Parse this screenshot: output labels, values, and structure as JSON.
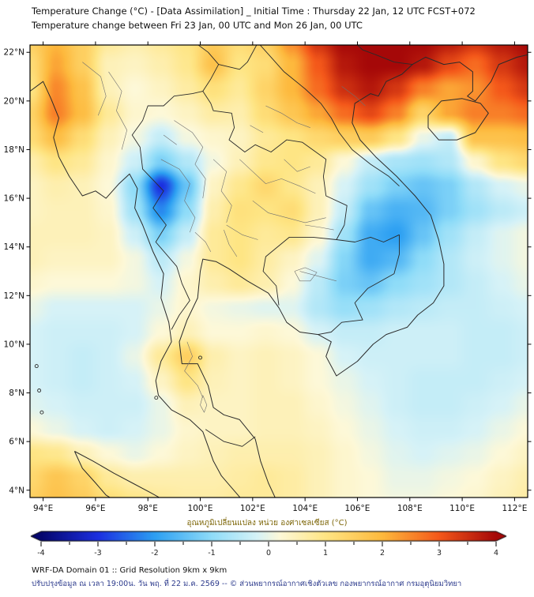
{
  "title": "Temperature Change (°C) - [Data Assimilation] _ Initial Time : Thursday 22 Jan, 12 UTC FCST+072",
  "subtitle": "Temperature change between Fri 23 Jan, 00 UTC and Mon 26 Jan, 00 UTC",
  "map": {
    "x_ticks": [
      "94°E",
      "96°E",
      "98°E",
      "100°E",
      "102°E",
      "104°E",
      "106°E",
      "108°E",
      "110°E",
      "112°E"
    ],
    "y_ticks": [
      "22°N",
      "20°N",
      "18°N",
      "16°N",
      "14°N",
      "12°N",
      "10°N",
      "8°N",
      "6°N",
      "4°N"
    ]
  },
  "colorbar": {
    "label": "อุณหภูมิเปลี่ยนแปลง หน่วย องศาเซลเซียส (°C)",
    "ticks": [
      "-4",
      "-3",
      "-2",
      "-1",
      "0",
      "1",
      "2",
      "3",
      "4"
    ]
  },
  "footer": {
    "line1": "WRF-DA Domain 01 :: Grid Resolution 9km x 9km",
    "line2": "ปรับปรุงข้อมูล ณ เวลา 19:00น. วัน พฤ. ที่ 22 ม.ค. 2569 -- © ส่วนพยากรณ์อากาศเชิงตัวเลข กองพยากรณ์อากาศ กรมอุตุนิยมวิทยา"
  },
  "chart_data": {
    "type": "heatmap",
    "title": "Temperature Change (°C) - [Data Assimilation] _ Initial Time : Thursday 22 Jan, 12 UTC FCST+072",
    "subtitle": "Temperature change between Fri 23 Jan, 00 UTC and Mon 26 Jan, 00 UTC",
    "x_unit": "°E",
    "y_unit": "°N",
    "value_unit": "°C",
    "value_range": [
      -4,
      4
    ],
    "colorbar_ticks": [
      -4,
      -3,
      -2,
      -1,
      0,
      1,
      2,
      3,
      4
    ],
    "colormap_stops": [
      {
        "v": -4,
        "color": "#05066d"
      },
      {
        "v": -3,
        "color": "#1b2fe0"
      },
      {
        "v": -2,
        "color": "#2c9ff2"
      },
      {
        "v": -1,
        "color": "#8fdcf8"
      },
      {
        "v": -0.2,
        "color": "#d6f2f7"
      },
      {
        "v": 0.2,
        "color": "#fdf8d8"
      },
      {
        "v": 1,
        "color": "#fee584"
      },
      {
        "v": 2,
        "color": "#fdb93d"
      },
      {
        "v": 3,
        "color": "#f4581a"
      },
      {
        "v": 4,
        "color": "#a50808"
      }
    ],
    "x": [
      93.5,
      94.5,
      95.5,
      96.5,
      97.5,
      98.5,
      99.5,
      100.5,
      101.5,
      102.5,
      103.5,
      104.5,
      105.5,
      106.5,
      107.5,
      108.5,
      109.5,
      110.5,
      111.5,
      112.5
    ],
    "y": [
      22.5,
      21.5,
      20.5,
      19.5,
      18.5,
      17.5,
      16.5,
      15.5,
      14.5,
      13.5,
      12.5,
      11.5,
      10.5,
      9.5,
      8.5,
      7.5,
      6.5,
      5.5,
      4.5,
      3.5
    ],
    "values": [
      [
        1.5,
        2.0,
        1.5,
        0.8,
        0.6,
        0.8,
        1.0,
        1.6,
        1.2,
        1.5,
        2.5,
        3.5,
        4.0,
        4.0,
        4.0,
        4.0,
        3.8,
        3.5,
        3.8,
        4.0
      ],
      [
        1.2,
        2.2,
        1.5,
        0.5,
        0.4,
        0.6,
        0.9,
        1.8,
        1.0,
        1.2,
        2.0,
        3.0,
        3.8,
        4.0,
        4.0,
        3.8,
        3.2,
        2.8,
        3.4,
        3.8
      ],
      [
        1.0,
        2.5,
        1.8,
        0.5,
        0.2,
        0.4,
        0.7,
        1.1,
        0.8,
        1.4,
        2.0,
        2.8,
        3.5,
        3.8,
        3.4,
        2.6,
        2.2,
        2.4,
        3.0,
        3.4
      ],
      [
        1.4,
        2.6,
        1.9,
        0.8,
        0.3,
        0.2,
        0.4,
        0.7,
        0.6,
        1.2,
        1.7,
        2.2,
        2.8,
        3.2,
        2.6,
        1.4,
        2.2,
        2.6,
        2.6,
        2.8
      ],
      [
        1.2,
        1.9,
        1.2,
        0.5,
        0.1,
        -0.4,
        0.1,
        0.3,
        0.4,
        0.8,
        1.0,
        1.3,
        1.5,
        1.6,
        1.0,
        0.0,
        -0.4,
        1.8,
        1.8,
        1.9
      ],
      [
        0.6,
        1.0,
        0.8,
        0.3,
        -0.3,
        -1.2,
        -0.6,
        0.1,
        0.5,
        0.9,
        1.0,
        0.8,
        0.2,
        -0.4,
        -0.7,
        -0.8,
        -0.6,
        0.3,
        1.0,
        1.3
      ],
      [
        0.4,
        0.6,
        0.5,
        0.2,
        -1.0,
        -3.0,
        -1.4,
        0.4,
        0.9,
        1.3,
        0.9,
        0.5,
        -0.2,
        -0.8,
        -1.2,
        -1.4,
        -1.2,
        -0.6,
        -0.2,
        0.0
      ],
      [
        0.4,
        0.5,
        0.5,
        0.3,
        -0.8,
        -2.2,
        -1.0,
        0.6,
        1.1,
        1.0,
        1.2,
        0.5,
        -0.4,
        -1.4,
        -1.7,
        -1.6,
        -1.2,
        -0.8,
        -0.5,
        -0.3
      ],
      [
        0.5,
        0.5,
        0.5,
        0.4,
        -0.3,
        -1.2,
        -0.4,
        0.8,
        1.0,
        0.8,
        0.9,
        0.3,
        -0.8,
        -1.8,
        -2.0,
        -1.4,
        -0.8,
        -0.4,
        -0.1,
        0.1
      ],
      [
        0.5,
        0.4,
        0.4,
        0.4,
        0.1,
        -0.5,
        0.1,
        0.8,
        1.0,
        0.7,
        0.4,
        -0.1,
        -1.1,
        -1.8,
        -1.6,
        -1.0,
        -0.6,
        -0.3,
        -0.1,
        0.1
      ],
      [
        0.3,
        0.2,
        0.2,
        0.2,
        0.1,
        -0.2,
        0.3,
        0.6,
        0.8,
        0.6,
        0.2,
        -0.5,
        -1.2,
        -1.4,
        -1.0,
        -0.8,
        -0.6,
        -0.4,
        -0.2,
        0.0
      ],
      [
        0.0,
        -0.2,
        -0.2,
        -0.2,
        -0.2,
        0.0,
        0.3,
        0.1,
        0.0,
        -0.1,
        -0.1,
        -0.6,
        -0.9,
        -0.8,
        -0.6,
        -0.5,
        -0.4,
        -0.4,
        -0.3,
        -0.2
      ],
      [
        -0.2,
        -0.3,
        -0.3,
        -0.3,
        -0.2,
        0.2,
        0.5,
        0.2,
        0.2,
        0.3,
        0.2,
        -0.2,
        -0.4,
        -0.4,
        -0.3,
        -0.3,
        -0.3,
        -0.4,
        -0.4,
        -0.3
      ],
      [
        -0.2,
        -0.3,
        -0.4,
        -0.3,
        0.0,
        0.8,
        1.5,
        0.6,
        0.4,
        0.5,
        0.4,
        0.2,
        -0.2,
        -0.3,
        -0.3,
        -0.3,
        -0.3,
        -0.4,
        -0.4,
        -0.3
      ],
      [
        -0.2,
        -0.3,
        -0.4,
        -0.3,
        -0.2,
        0.4,
        1.0,
        0.5,
        0.4,
        0.5,
        0.4,
        0.2,
        0.0,
        -0.2,
        -0.3,
        -0.4,
        -0.4,
        -0.4,
        -0.3,
        -0.2
      ],
      [
        -0.1,
        -0.2,
        -0.3,
        -0.3,
        -0.3,
        0.0,
        0.5,
        0.4,
        0.4,
        0.5,
        0.5,
        0.3,
        0.1,
        -0.1,
        -0.3,
        -0.4,
        -0.4,
        -0.3,
        -0.2,
        0.0
      ],
      [
        0.2,
        0.0,
        -0.2,
        -0.3,
        -0.2,
        0.0,
        0.3,
        0.4,
        0.4,
        0.5,
        0.5,
        0.4,
        0.2,
        0.0,
        -0.2,
        -0.3,
        -0.3,
        -0.2,
        0.0,
        0.2
      ],
      [
        1.0,
        0.9,
        0.5,
        0.2,
        0.0,
        0.2,
        0.4,
        0.5,
        0.6,
        0.6,
        0.6,
        0.5,
        0.3,
        0.1,
        -0.1,
        -0.2,
        -0.1,
        0.0,
        0.2,
        0.4
      ],
      [
        1.3,
        1.7,
        1.4,
        0.8,
        0.6,
        0.6,
        0.6,
        0.6,
        0.7,
        0.8,
        0.7,
        0.5,
        0.3,
        0.2,
        0.0,
        0.0,
        0.1,
        0.2,
        0.4,
        0.6
      ],
      [
        1.5,
        1.8,
        1.6,
        1.2,
        1.0,
        0.8,
        0.7,
        0.7,
        0.8,
        0.8,
        0.7,
        0.5,
        0.3,
        0.2,
        0.1,
        0.1,
        0.2,
        0.3,
        0.5,
        0.7
      ]
    ]
  }
}
